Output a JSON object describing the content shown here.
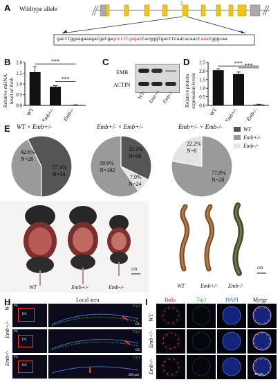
{
  "panels": {
    "A": "A",
    "B": "B",
    "C": "C",
    "D": "D",
    "E": "E",
    "F": "F",
    "G": "G",
    "H": "H",
    "I": "I"
  },
  "panelA": {
    "allele_label": "Wildtype allele",
    "sequence_parts": [
      {
        "text": "gacttggaagaaagatgatga",
        "color": "normal"
      },
      {
        "text": "gcccttgaga",
        "color": "red"
      },
      {
        "text": "ctacgggtgacttcaatacaact",
        "color": "normal"
      },
      {
        "text": "aaa",
        "color": "red"
      },
      {
        "text": "tgggcaa",
        "color": "normal"
      }
    ],
    "exon_color": "#f0c419",
    "utr_color": "#aaaaaa"
  },
  "panelB": {
    "ylabel": "Relative mRNA level of Emb",
    "ylabel_line1": "Relative mRNA",
    "ylabel_line2": "level of ",
    "ylabel_gene": "Emb",
    "ticks": [
      "0.0",
      "0.5",
      "1.0",
      "1.5",
      "2.0"
    ],
    "categories": [
      "WT",
      "Emb+/-",
      "Emb-/-"
    ],
    "significance": [
      "***",
      "***"
    ]
  },
  "panelC": {
    "rows": [
      "EMB",
      "ACTIN"
    ],
    "lanes": [
      "WT",
      "Emb+/-",
      "Emb-/-"
    ]
  },
  "panelD": {
    "ylabel_line1": "Relative protein",
    "ylabel_line2": "expression levels",
    "ticks": [
      "0.0",
      "0.5",
      "1.0",
      "1.5",
      "2.0",
      "2.5"
    ],
    "categories": [
      "WT",
      "Emb+/-",
      "Emb-/-"
    ],
    "significance": [
      "***",
      "***"
    ]
  },
  "panelE": {
    "cross_titles": [
      "WT × Emb+/-",
      "Emb+/- × Emb+/-",
      "Emb+/- × Emb-/-"
    ],
    "legend": [
      {
        "label": "WT",
        "color": "#555555"
      },
      {
        "label": "Emb+/-",
        "color": "#9a9a9a"
      },
      {
        "label": "Emb-/-",
        "color": "#e4e4e4"
      }
    ],
    "pie_labels": [
      [
        "42.6%",
        "N=26",
        "57.4%",
        "N=34"
      ],
      [
        "59.9%",
        "N=182",
        "32.2%",
        "N=98",
        "7.9%",
        "N=24"
      ],
      [
        "22.2%",
        "N=8",
        "77.8%",
        "N=28"
      ]
    ]
  },
  "panelF": {
    "scale": "cm",
    "labels": [
      "WT",
      "Emb+/-",
      "Emb-/-"
    ]
  },
  "panelG": {
    "scale": "cm",
    "labels": [
      "WT",
      "Emb+/-",
      "Emb-/-"
    ]
  },
  "panelH": {
    "title": "Local area",
    "rows": [
      "WT",
      "Emb+/-",
      "Emb-/-"
    ],
    "marker": "Tuj1",
    "region_labels": [
      "PC",
      "DC"
    ],
    "scale": "200 μm"
  },
  "panelI": {
    "columns": [
      "Brdu",
      "Tuj1",
      "DAPI",
      "Merge"
    ],
    "column_colors": [
      "#d7191c",
      "#2ca02c",
      "#1f4fc9",
      "#111111"
    ],
    "rows": [
      "WT",
      "Emb+/-",
      "Emb-/-"
    ],
    "scale": "40 μm"
  },
  "chart_data": [
    {
      "type": "bar",
      "title": "",
      "categories": [
        "WT",
        "Emb+/-",
        "Emb-/-"
      ],
      "values": [
        1.55,
        0.87,
        0.02
      ],
      "errors": [
        0.25,
        0.05,
        0.01
      ],
      "ylim": [
        0,
        2.0
      ],
      "ylabel": "Relative mRNA level of Emb",
      "xlabel": ""
    },
    {
      "type": "bar",
      "title": "",
      "categories": [
        "WT",
        "Emb+/-",
        "Emb-/-"
      ],
      "values": [
        2.05,
        1.82,
        0.05
      ],
      "errors": [
        0.08,
        0.12,
        0.02
      ],
      "ylim": [
        0,
        2.5
      ],
      "ylabel": "Relative protein expression levels",
      "xlabel": ""
    },
    {
      "type": "pie",
      "title": "WT × Emb+/-",
      "labels": [
        "Emb+/-",
        "WT"
      ],
      "values": [
        42.6,
        57.4
      ],
      "counts": [
        26,
        34
      ]
    },
    {
      "type": "pie",
      "title": "Emb+/- × Emb+/-",
      "labels": [
        "Emb+/-",
        "WT",
        "Emb-/-"
      ],
      "values": [
        59.9,
        32.2,
        7.9
      ],
      "counts": [
        182,
        98,
        24
      ]
    },
    {
      "type": "pie",
      "title": "Emb+/- × Emb-/-",
      "labels": [
        "Emb-/-",
        "Emb+/-"
      ],
      "values": [
        22.2,
        77.8
      ],
      "counts": [
        8,
        28
      ]
    }
  ]
}
